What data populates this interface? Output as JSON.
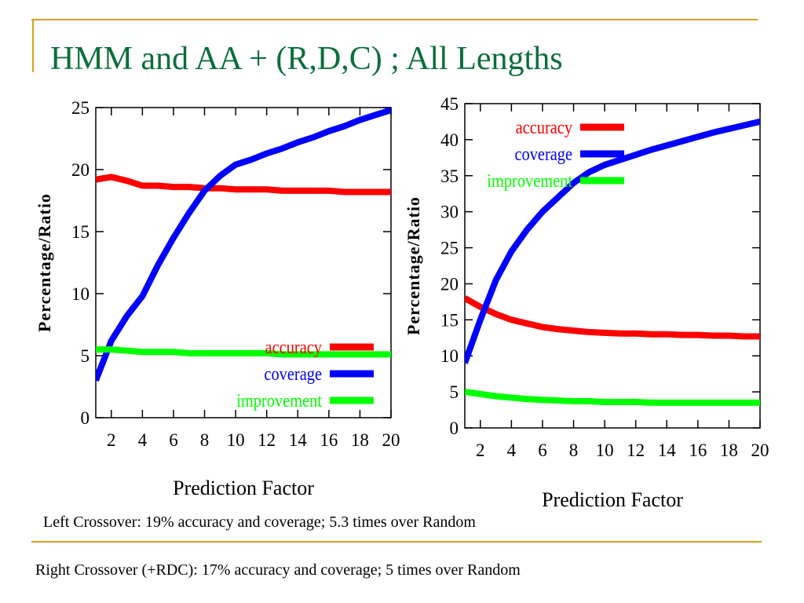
{
  "slide": {
    "title": "HMM and AA + (R,D,C) ; All Lengths",
    "captions": [
      "Left Crossover: 19% accuracy and coverage; 5.3 times over Random",
      "Right Crossover (+RDC): 17% accuracy and coverage; 5 times over Random"
    ]
  },
  "chart_data": [
    {
      "type": "line",
      "xlabel": "Prediction Factor",
      "ylabel": "Percentage/Ratio",
      "x": [
        1,
        2,
        3,
        4,
        5,
        6,
        7,
        8,
        9,
        10,
        11,
        12,
        13,
        14,
        15,
        16,
        17,
        18,
        19,
        20
      ],
      "xlim": [
        1,
        20
      ],
      "xticks": [
        2,
        4,
        6,
        8,
        10,
        12,
        14,
        16,
        18,
        20
      ],
      "ylim": [
        0,
        25
      ],
      "yticks": [
        0,
        5,
        10,
        15,
        20,
        25
      ],
      "legend": "lower right",
      "series": [
        {
          "name": "accuracy",
          "color": "#ff0000",
          "values": [
            19.2,
            19.4,
            19.1,
            18.7,
            18.7,
            18.6,
            18.6,
            18.5,
            18.5,
            18.4,
            18.4,
            18.4,
            18.3,
            18.3,
            18.3,
            18.3,
            18.2,
            18.2,
            18.2,
            18.2
          ]
        },
        {
          "name": "coverage",
          "color": "#0000ff",
          "values": [
            3,
            6.2,
            8.2,
            9.8,
            12.3,
            14.5,
            16.5,
            18.3,
            19.5,
            20.4,
            20.8,
            21.3,
            21.7,
            22.2,
            22.6,
            23.1,
            23.5,
            24,
            24.4,
            24.8
          ]
        },
        {
          "name": "improvement",
          "color": "#00ff00",
          "values": [
            5.5,
            5.5,
            5.4,
            5.3,
            5.3,
            5.3,
            5.2,
            5.2,
            5.2,
            5.2,
            5.2,
            5.2,
            5.1,
            5.1,
            5.1,
            5.1,
            5.1,
            5.1,
            5.1,
            5.1
          ]
        }
      ]
    },
    {
      "type": "line",
      "xlabel": "Prediction Factor",
      "ylabel": "Percentage/Ratio",
      "x": [
        1,
        2,
        3,
        4,
        5,
        6,
        7,
        8,
        9,
        10,
        11,
        12,
        13,
        14,
        15,
        16,
        17,
        18,
        19,
        20
      ],
      "xlim": [
        1,
        20
      ],
      "xticks": [
        2,
        4,
        6,
        8,
        10,
        12,
        14,
        16,
        18,
        20
      ],
      "ylim": [
        0,
        45
      ],
      "yticks": [
        0,
        5,
        10,
        15,
        20,
        25,
        30,
        35,
        40,
        45
      ],
      "legend": "upper center",
      "series": [
        {
          "name": "accuracy",
          "color": "#ff0000",
          "values": [
            18,
            16.8,
            15.8,
            15,
            14.5,
            14,
            13.7,
            13.5,
            13.3,
            13.2,
            13.1,
            13.1,
            13,
            13,
            12.9,
            12.9,
            12.8,
            12.8,
            12.7,
            12.7
          ]
        },
        {
          "name": "coverage",
          "color": "#0000ff",
          "values": [
            9,
            15,
            20.5,
            24.5,
            27.5,
            30,
            32,
            34,
            35.5,
            36.5,
            37.2,
            37.9,
            38.6,
            39.2,
            39.8,
            40.4,
            41,
            41.5,
            42,
            42.5
          ]
        },
        {
          "name": "improvement",
          "color": "#00ff00",
          "values": [
            5,
            4.7,
            4.4,
            4.2,
            4,
            3.9,
            3.8,
            3.7,
            3.7,
            3.6,
            3.6,
            3.6,
            3.5,
            3.5,
            3.5,
            3.5,
            3.5,
            3.5,
            3.5,
            3.5
          ]
        }
      ]
    }
  ]
}
